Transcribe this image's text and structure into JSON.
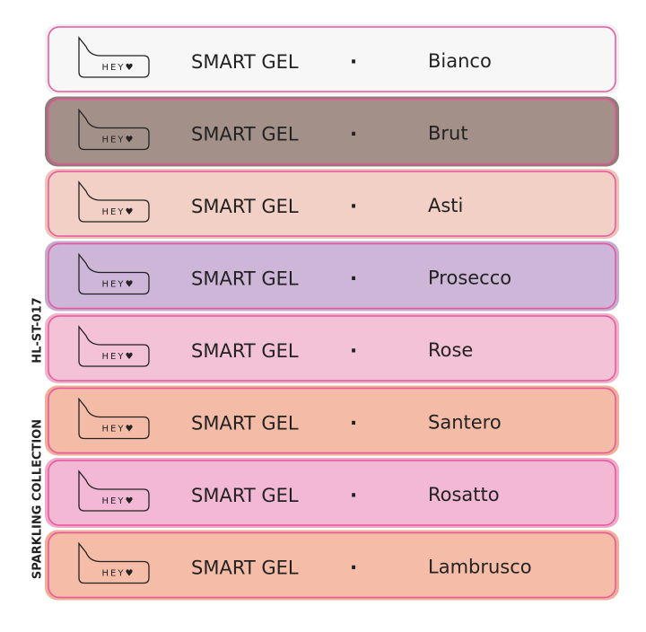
{
  "side_labels": {
    "code": "HL-ST-017",
    "collection": "SPARKLING COLLECTION"
  },
  "rows": [
    {
      "logo": "HEY♥",
      "product": "SMART GEL",
      "separator": "·",
      "shade": "Bianco"
    },
    {
      "logo": "HEY♥",
      "product": "SMART GEL",
      "separator": "·",
      "shade": "Brut"
    },
    {
      "logo": "HEY♥",
      "product": "SMART GEL",
      "separator": "·",
      "shade": "Asti"
    },
    {
      "logo": "HEY♥",
      "product": "SMART GEL",
      "separator": "·",
      "shade": "Prosecco"
    },
    {
      "logo": "HEY♥",
      "product": "SMART GEL",
      "separator": "·",
      "shade": "Rose"
    },
    {
      "logo": "HEY♥",
      "product": "SMART GEL",
      "separator": "·",
      "shade": "Santero"
    },
    {
      "logo": "HEY♥",
      "product": "SMART GEL",
      "separator": "·",
      "shade": "Rosatto"
    },
    {
      "logo": "HEY♥",
      "product": "SMART GEL",
      "separator": "·",
      "shade": "Lambrusco"
    }
  ]
}
